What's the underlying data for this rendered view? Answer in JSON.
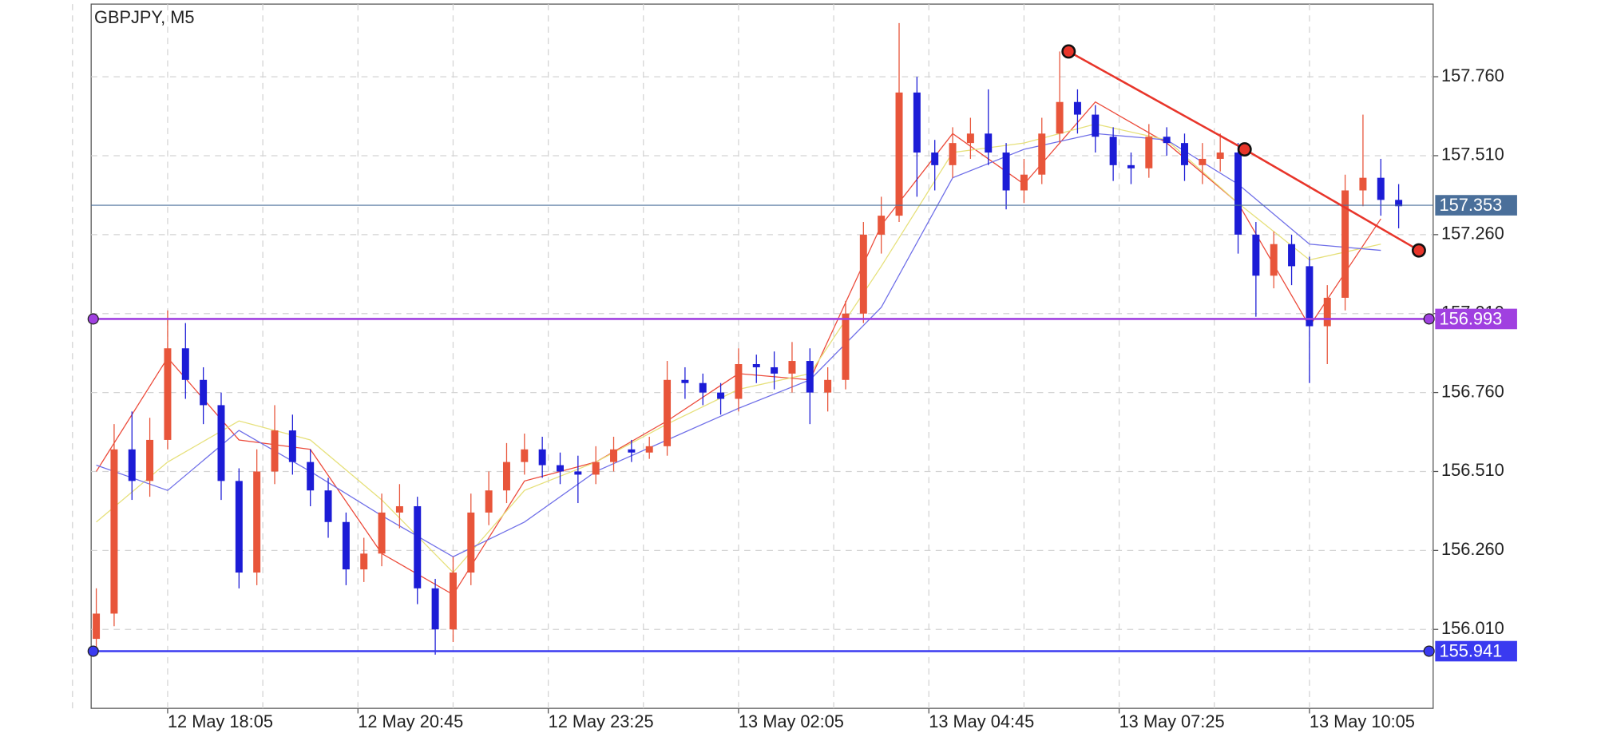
{
  "chart_data": {
    "type": "candlestick",
    "title": "GBPJPY, M5",
    "x": [
      0,
      3,
      6,
      9,
      12,
      15,
      18,
      21,
      24,
      27,
      30,
      33,
      36,
      39,
      42,
      45,
      48,
      51,
      54,
      57,
      60,
      63,
      66,
      69,
      72,
      75,
      78,
      81,
      84,
      87,
      90,
      93,
      96,
      99,
      102,
      105,
      108,
      111,
      114,
      117,
      120,
      123,
      126,
      129,
      132,
      135,
      138,
      141,
      144,
      147,
      150,
      153,
      156,
      159,
      162,
      165,
      168,
      171,
      174,
      177,
      180,
      183,
      186,
      189,
      192,
      195,
      198,
      201,
      204,
      207,
      210,
      213,
      216,
      219
    ],
    "open": [
      155.98,
      156.06,
      156.58,
      156.48,
      156.61,
      156.9,
      156.8,
      156.72,
      156.48,
      156.19,
      156.51,
      156.64,
      156.54,
      156.45,
      156.35,
      156.2,
      156.25,
      156.38,
      156.4,
      156.14,
      156.01,
      156.19,
      156.38,
      156.45,
      156.54,
      156.58,
      156.53,
      156.51,
      156.5,
      156.54,
      156.58,
      156.57,
      156.59,
      156.8,
      156.79,
      156.76,
      156.74,
      156.85,
      156.84,
      156.82,
      156.86,
      156.76,
      156.8,
      157.01,
      157.26,
      157.32,
      157.71,
      157.52,
      157.48,
      157.55,
      157.58,
      157.52,
      157.4,
      157.45,
      157.58,
      157.68,
      157.64,
      157.57,
      157.48,
      157.47,
      157.57,
      157.55,
      157.48,
      157.5,
      157.52,
      157.26,
      157.13,
      157.23,
      157.16,
      156.97,
      157.06,
      157.4,
      157.44,
      157.37
    ],
    "high": [
      156.14,
      156.66,
      156.7,
      156.68,
      157.02,
      156.98,
      156.84,
      156.76,
      156.52,
      156.58,
      156.72,
      156.69,
      156.58,
      156.49,
      156.38,
      156.3,
      156.44,
      156.47,
      156.43,
      156.17,
      156.24,
      156.44,
      156.51,
      156.6,
      156.63,
      156.62,
      156.57,
      156.56,
      156.59,
      156.62,
      156.61,
      156.62,
      156.86,
      156.84,
      156.82,
      156.79,
      156.9,
      156.88,
      156.89,
      156.92,
      156.9,
      156.84,
      157.05,
      157.3,
      157.38,
      157.93,
      157.76,
      157.56,
      157.6,
      157.63,
      157.72,
      157.55,
      157.5,
      157.63,
      157.84,
      157.72,
      157.67,
      157.6,
      157.52,
      157.61,
      157.6,
      157.58,
      157.55,
      157.58,
      157.55,
      157.3,
      157.27,
      157.26,
      157.19,
      157.1,
      157.45,
      157.64,
      157.5,
      157.42
    ],
    "low": [
      155.95,
      156.02,
      156.42,
      156.43,
      156.58,
      156.74,
      156.66,
      156.42,
      156.14,
      156.15,
      156.47,
      156.5,
      156.4,
      156.3,
      156.15,
      156.16,
      156.21,
      156.33,
      156.09,
      155.93,
      155.97,
      156.15,
      156.34,
      156.41,
      156.5,
      156.49,
      156.47,
      156.41,
      156.47,
      156.51,
      156.54,
      156.55,
      156.56,
      156.74,
      156.72,
      156.69,
      156.7,
      156.79,
      156.77,
      156.76,
      156.66,
      156.7,
      156.77,
      156.98,
      157.2,
      157.3,
      157.38,
      157.4,
      157.44,
      157.5,
      157.48,
      157.34,
      157.36,
      157.42,
      157.55,
      157.58,
      157.52,
      157.43,
      157.42,
      157.44,
      157.51,
      157.43,
      157.42,
      157.46,
      157.2,
      157.0,
      157.09,
      157.1,
      156.79,
      156.85,
      157.02,
      157.35,
      157.32,
      157.28
    ],
    "close": [
      156.06,
      156.58,
      156.48,
      156.61,
      156.9,
      156.8,
      156.72,
      156.48,
      156.19,
      156.51,
      156.64,
      156.54,
      156.45,
      156.35,
      156.2,
      156.25,
      156.38,
      156.4,
      156.14,
      156.01,
      156.19,
      156.38,
      156.45,
      156.54,
      156.58,
      156.53,
      156.51,
      156.5,
      156.54,
      156.58,
      156.57,
      156.59,
      156.8,
      156.79,
      156.76,
      156.74,
      156.85,
      156.84,
      156.82,
      156.86,
      156.76,
      156.8,
      157.01,
      157.26,
      157.32,
      157.71,
      157.52,
      157.48,
      157.55,
      157.58,
      157.52,
      157.4,
      157.45,
      157.58,
      157.68,
      157.64,
      157.57,
      157.48,
      157.47,
      157.57,
      157.55,
      157.48,
      157.5,
      157.52,
      157.26,
      157.13,
      157.23,
      157.16,
      156.97,
      157.06,
      157.4,
      157.44,
      157.37,
      157.35
    ],
    "up_color": "#e8553a",
    "down_color": "#1c1cd6",
    "moving_averages": [
      {
        "color": "#ec4a3a",
        "x": [
          0,
          12,
          24,
          36,
          48,
          60,
          72,
          84,
          96,
          108,
          120,
          132,
          144,
          156,
          168,
          180,
          192,
          204,
          216
        ],
        "values": [
          156.51,
          156.87,
          156.61,
          156.58,
          156.25,
          156.12,
          156.48,
          156.54,
          156.67,
          156.82,
          156.8,
          157.29,
          157.58,
          157.42,
          157.68,
          157.55,
          157.36,
          156.97,
          157.31
        ]
      },
      {
        "color": "#e6e07a",
        "x": [
          0,
          12,
          24,
          36,
          48,
          60,
          72,
          84,
          96,
          108,
          120,
          132,
          144,
          156,
          168,
          180,
          192,
          204,
          216
        ],
        "values": [
          156.35,
          156.54,
          156.67,
          156.61,
          156.42,
          156.19,
          156.45,
          156.54,
          156.66,
          156.77,
          156.82,
          157.16,
          157.52,
          157.55,
          157.61,
          157.56,
          157.36,
          157.18,
          157.23
        ]
      },
      {
        "color": "#6f6fe8",
        "x": [
          0,
          12,
          24,
          36,
          48,
          60,
          72,
          84,
          96,
          108,
          120,
          132,
          144,
          156,
          168,
          180,
          192,
          204,
          216
        ],
        "values": [
          156.53,
          156.45,
          156.64,
          156.51,
          156.37,
          156.24,
          156.35,
          156.51,
          156.61,
          156.71,
          156.8,
          157.03,
          157.44,
          157.53,
          157.58,
          157.56,
          157.42,
          157.23,
          157.21
        ]
      }
    ],
    "levels": [
      {
        "value": 157.353,
        "color": "#4a6f9a"
      },
      {
        "value": 156.993,
        "color": "#a040e0"
      },
      {
        "value": 155.941,
        "color": "#3a3af0"
      }
    ],
    "trendline": {
      "color": "#e8352a",
      "x": [
        163.5,
        193.1,
        222.4
      ],
      "values": [
        157.84,
        157.53,
        157.21
      ]
    },
    "xlim": [
      -0.86,
      224.8
    ],
    "xticks": [
      {
        "value": 12,
        "label": "12 May 18:05"
      },
      {
        "value": 44,
        "label": "12 May 20:45"
      },
      {
        "value": 76,
        "label": "12 May 23:25"
      },
      {
        "value": 108,
        "label": "13 May 02:05"
      },
      {
        "value": 140,
        "label": "13 May 04:45"
      },
      {
        "value": 172,
        "label": "13 May 07:25"
      },
      {
        "value": 204,
        "label": "13 May 10:05"
      }
    ],
    "ylim": [
      155.76,
      157.99
    ],
    "yticks": [
      {
        "value": 156.01,
        "label": "156.010"
      },
      {
        "value": 156.26,
        "label": "156.260"
      },
      {
        "value": 156.51,
        "label": "156.510"
      },
      {
        "value": 156.76,
        "label": "156.760"
      },
      {
        "value": 157.01,
        "label": "157.010"
      },
      {
        "value": 157.26,
        "label": "157.260"
      },
      {
        "value": 157.51,
        "label": "157.510"
      },
      {
        "value": 157.76,
        "label": "157.760"
      }
    ],
    "grid": true
  }
}
